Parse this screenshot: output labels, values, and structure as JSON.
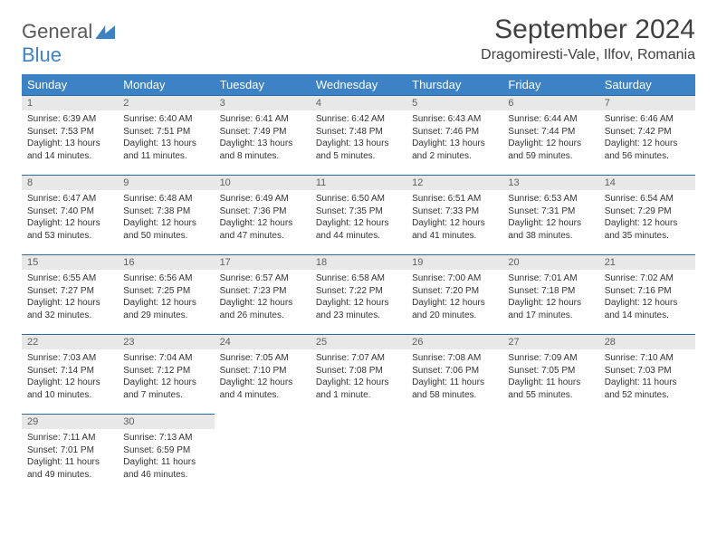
{
  "brand": {
    "part1": "General",
    "part2": "Blue"
  },
  "title": "September 2024",
  "location": "Dragomiresti-Vale, Ilfov, Romania",
  "colors": {
    "header_bg": "#3c82c4",
    "header_text": "#ffffff",
    "daynum_bg": "#e8e8e8",
    "daynum_border": "#2e6ba5",
    "text": "#333333",
    "title_text": "#404040"
  },
  "day_headers": [
    "Sunday",
    "Monday",
    "Tuesday",
    "Wednesday",
    "Thursday",
    "Friday",
    "Saturday"
  ],
  "days": [
    {
      "n": "1",
      "sunrise": "6:39 AM",
      "sunset": "7:53 PM",
      "daylight": "13 hours and 14 minutes."
    },
    {
      "n": "2",
      "sunrise": "6:40 AM",
      "sunset": "7:51 PM",
      "daylight": "13 hours and 11 minutes."
    },
    {
      "n": "3",
      "sunrise": "6:41 AM",
      "sunset": "7:49 PM",
      "daylight": "13 hours and 8 minutes."
    },
    {
      "n": "4",
      "sunrise": "6:42 AM",
      "sunset": "7:48 PM",
      "daylight": "13 hours and 5 minutes."
    },
    {
      "n": "5",
      "sunrise": "6:43 AM",
      "sunset": "7:46 PM",
      "daylight": "13 hours and 2 minutes."
    },
    {
      "n": "6",
      "sunrise": "6:44 AM",
      "sunset": "7:44 PM",
      "daylight": "12 hours and 59 minutes."
    },
    {
      "n": "7",
      "sunrise": "6:46 AM",
      "sunset": "7:42 PM",
      "daylight": "12 hours and 56 minutes."
    },
    {
      "n": "8",
      "sunrise": "6:47 AM",
      "sunset": "7:40 PM",
      "daylight": "12 hours and 53 minutes."
    },
    {
      "n": "9",
      "sunrise": "6:48 AM",
      "sunset": "7:38 PM",
      "daylight": "12 hours and 50 minutes."
    },
    {
      "n": "10",
      "sunrise": "6:49 AM",
      "sunset": "7:36 PM",
      "daylight": "12 hours and 47 minutes."
    },
    {
      "n": "11",
      "sunrise": "6:50 AM",
      "sunset": "7:35 PM",
      "daylight": "12 hours and 44 minutes."
    },
    {
      "n": "12",
      "sunrise": "6:51 AM",
      "sunset": "7:33 PM",
      "daylight": "12 hours and 41 minutes."
    },
    {
      "n": "13",
      "sunrise": "6:53 AM",
      "sunset": "7:31 PM",
      "daylight": "12 hours and 38 minutes."
    },
    {
      "n": "14",
      "sunrise": "6:54 AM",
      "sunset": "7:29 PM",
      "daylight": "12 hours and 35 minutes."
    },
    {
      "n": "15",
      "sunrise": "6:55 AM",
      "sunset": "7:27 PM",
      "daylight": "12 hours and 32 minutes."
    },
    {
      "n": "16",
      "sunrise": "6:56 AM",
      "sunset": "7:25 PM",
      "daylight": "12 hours and 29 minutes."
    },
    {
      "n": "17",
      "sunrise": "6:57 AM",
      "sunset": "7:23 PM",
      "daylight": "12 hours and 26 minutes."
    },
    {
      "n": "18",
      "sunrise": "6:58 AM",
      "sunset": "7:22 PM",
      "daylight": "12 hours and 23 minutes."
    },
    {
      "n": "19",
      "sunrise": "7:00 AM",
      "sunset": "7:20 PM",
      "daylight": "12 hours and 20 minutes."
    },
    {
      "n": "20",
      "sunrise": "7:01 AM",
      "sunset": "7:18 PM",
      "daylight": "12 hours and 17 minutes."
    },
    {
      "n": "21",
      "sunrise": "7:02 AM",
      "sunset": "7:16 PM",
      "daylight": "12 hours and 14 minutes."
    },
    {
      "n": "22",
      "sunrise": "7:03 AM",
      "sunset": "7:14 PM",
      "daylight": "12 hours and 10 minutes."
    },
    {
      "n": "23",
      "sunrise": "7:04 AM",
      "sunset": "7:12 PM",
      "daylight": "12 hours and 7 minutes."
    },
    {
      "n": "24",
      "sunrise": "7:05 AM",
      "sunset": "7:10 PM",
      "daylight": "12 hours and 4 minutes."
    },
    {
      "n": "25",
      "sunrise": "7:07 AM",
      "sunset": "7:08 PM",
      "daylight": "12 hours and 1 minute."
    },
    {
      "n": "26",
      "sunrise": "7:08 AM",
      "sunset": "7:06 PM",
      "daylight": "11 hours and 58 minutes."
    },
    {
      "n": "27",
      "sunrise": "7:09 AM",
      "sunset": "7:05 PM",
      "daylight": "11 hours and 55 minutes."
    },
    {
      "n": "28",
      "sunrise": "7:10 AM",
      "sunset": "7:03 PM",
      "daylight": "11 hours and 52 minutes."
    },
    {
      "n": "29",
      "sunrise": "7:11 AM",
      "sunset": "7:01 PM",
      "daylight": "11 hours and 49 minutes."
    },
    {
      "n": "30",
      "sunrise": "7:13 AM",
      "sunset": "6:59 PM",
      "daylight": "11 hours and 46 minutes."
    }
  ],
  "labels": {
    "sunrise": "Sunrise: ",
    "sunset": "Sunset: ",
    "daylight": "Daylight: "
  }
}
